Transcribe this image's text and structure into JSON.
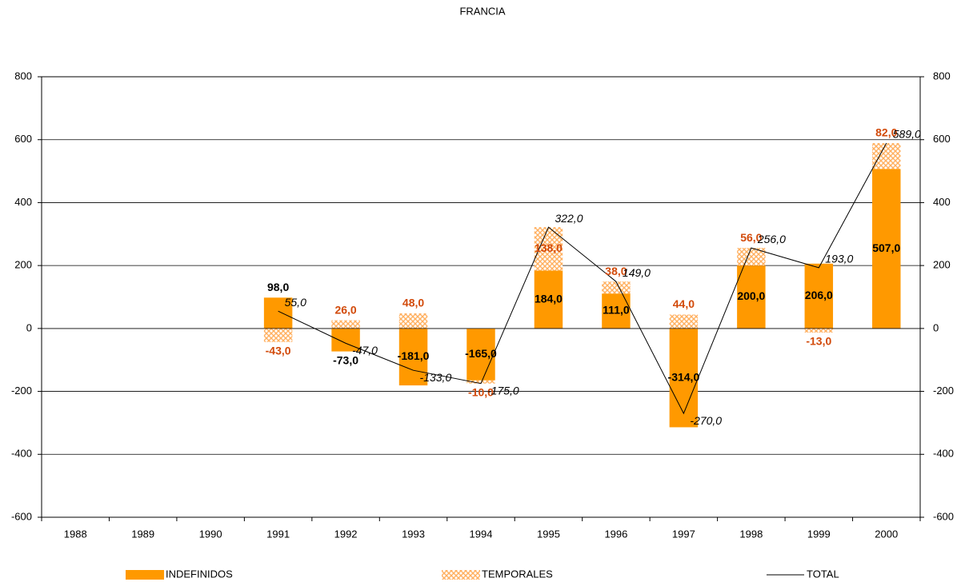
{
  "chart_data": {
    "type": "bar",
    "title": "FRANCIA",
    "categories": [
      "1988",
      "1989",
      "1990",
      "1991",
      "1992",
      "1993",
      "1994",
      "1995",
      "1996",
      "1997",
      "1998",
      "1999",
      "2000"
    ],
    "series": [
      {
        "name": "INDEFINIDOS",
        "color": "#ff9900",
        "stack": true,
        "values": [
          null,
          null,
          null,
          98,
          -73,
          -181,
          -165,
          184,
          111,
          -314,
          200,
          206,
          507
        ],
        "value_labels": [
          null,
          null,
          null,
          "98,0",
          "-73,0",
          "-181,0",
          "-165,0",
          "184,0",
          "111,0",
          "-314,0",
          "200,0",
          "206,0",
          "507,0"
        ],
        "label_color": "#000000"
      },
      {
        "name": "TEMPORALES",
        "color": "#ffb84d",
        "pattern": "crosshatch",
        "stack": true,
        "values": [
          null,
          null,
          null,
          -43,
          26,
          48,
          -10,
          138,
          38,
          44,
          56,
          -13,
          82
        ],
        "value_labels": [
          null,
          null,
          null,
          "-43,0",
          "26,0",
          "48,0",
          "-10,0",
          "138,0",
          "38,0",
          "44,0",
          "56,0",
          "-13,0",
          "82,0"
        ],
        "label_color": "#d24a0a"
      },
      {
        "name": "TOTAL",
        "type": "line",
        "axis": "y2",
        "color": "#000000",
        "values": [
          null,
          null,
          null,
          55,
          -47,
          -133,
          -175,
          322,
          149,
          -270,
          256,
          193,
          589
        ],
        "value_labels": [
          null,
          null,
          null,
          "55,0",
          "-47,0",
          "-133,0",
          "-175,0",
          "322,0",
          "149,0",
          "-270,0",
          "256,0",
          "193,0",
          "589,0"
        ]
      }
    ],
    "ylim": [
      -600,
      800
    ],
    "yticks": [
      -600,
      -400,
      -200,
      0,
      200,
      400,
      600,
      800
    ],
    "y2lim": [
      -600,
      800
    ],
    "y2ticks": [
      -600,
      -400,
      -200,
      0,
      200,
      400,
      600,
      800
    ],
    "grid": true,
    "legend": "bottom"
  }
}
